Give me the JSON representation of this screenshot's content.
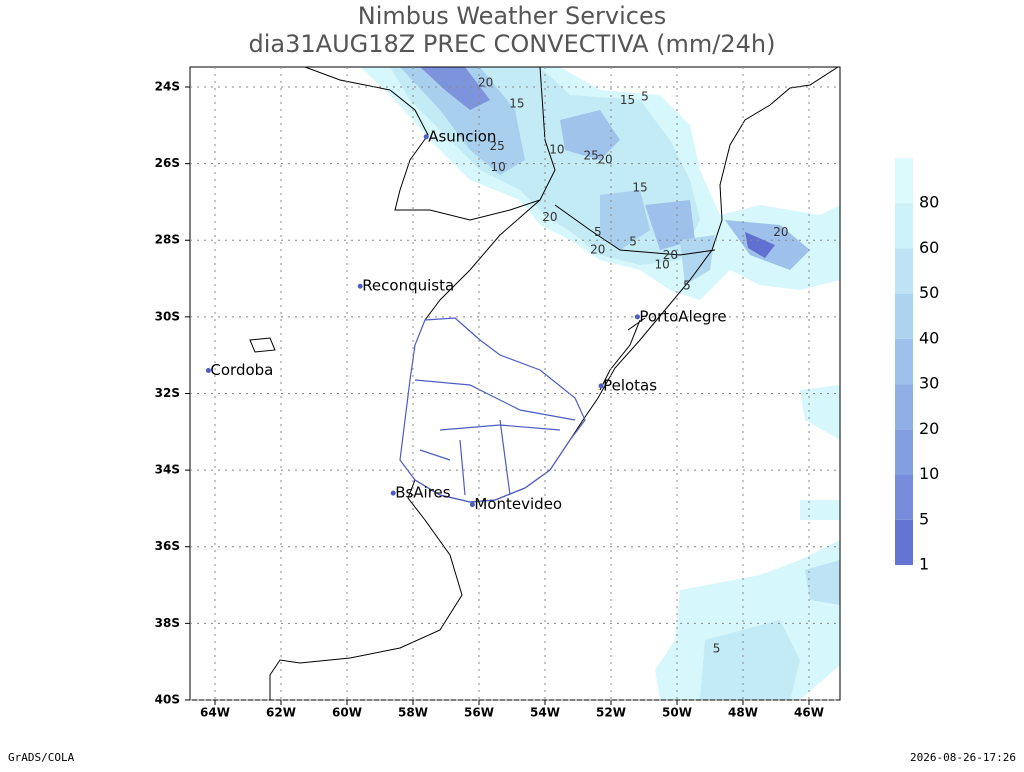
{
  "header": {
    "title": "Nimbus Weather Services",
    "subtitle": "dia31AUG18Z PREC CONVECTIVA (mm/24h)"
  },
  "map": {
    "lon_ticks": [
      {
        "value": -64,
        "label": "64W"
      },
      {
        "value": -62,
        "label": "62W"
      },
      {
        "value": -60,
        "label": "60W"
      },
      {
        "value": -58,
        "label": "58W"
      },
      {
        "value": -56,
        "label": "56W"
      },
      {
        "value": -54,
        "label": "54W"
      },
      {
        "value": -52,
        "label": "52W"
      },
      {
        "value": -50,
        "label": "50W"
      },
      {
        "value": -48,
        "label": "48W"
      },
      {
        "value": -46,
        "label": "46W"
      }
    ],
    "lat_ticks": [
      {
        "value": -24,
        "label": "24S"
      },
      {
        "value": -26,
        "label": "26S"
      },
      {
        "value": -28,
        "label": "28S"
      },
      {
        "value": -30,
        "label": "30S"
      },
      {
        "value": -32,
        "label": "32S"
      },
      {
        "value": -34,
        "label": "34S"
      },
      {
        "value": -36,
        "label": "36S"
      },
      {
        "value": -38,
        "label": "38S"
      },
      {
        "value": -40,
        "label": "40S"
      }
    ],
    "cities": [
      {
        "name": "Asuncion",
        "lon": -57.6,
        "lat": -25.3
      },
      {
        "name": "Reconquista",
        "lon": -59.6,
        "lat": -29.2
      },
      {
        "name": "Cordoba",
        "lon": -64.2,
        "lat": -31.4
      },
      {
        "name": "BsAires",
        "lon": -58.6,
        "lat": -34.6
      },
      {
        "name": "Montevideo",
        "lon": -56.2,
        "lat": -34.9
      },
      {
        "name": "PortoAlegre",
        "lon": -51.2,
        "lat": -30.0
      },
      {
        "name": "Pelotas",
        "lon": -52.3,
        "lat": -31.8
      }
    ],
    "contour_labels": [
      {
        "text": "20",
        "lon": -55.8,
        "lat": -23.9
      },
      {
        "text": "15",
        "lon": -54.85,
        "lat": -24.45
      },
      {
        "text": "15",
        "lon": -51.5,
        "lat": -24.35
      },
      {
        "text": "5",
        "lon": -50.97,
        "lat": -24.26
      },
      {
        "text": "25",
        "lon": -55.45,
        "lat": -25.55
      },
      {
        "text": "10",
        "lon": -55.42,
        "lat": -26.1
      },
      {
        "text": "10",
        "lon": -53.64,
        "lat": -25.65
      },
      {
        "text": "25",
        "lon": -52.6,
        "lat": -25.8
      },
      {
        "text": "20",
        "lon": -52.18,
        "lat": -25.9
      },
      {
        "text": "15",
        "lon": -51.12,
        "lat": -26.64
      },
      {
        "text": "20",
        "lon": -53.85,
        "lat": -27.4
      },
      {
        "text": "5",
        "lon": -52.4,
        "lat": -27.8
      },
      {
        "text": "5",
        "lon": -51.33,
        "lat": -28.05
      },
      {
        "text": "20",
        "lon": -52.4,
        "lat": -28.25
      },
      {
        "text": "20",
        "lon": -50.2,
        "lat": -28.4
      },
      {
        "text": "10",
        "lon": -50.45,
        "lat": -28.65
      },
      {
        "text": "5",
        "lon": -49.7,
        "lat": -29.2
      },
      {
        "text": "20",
        "lon": -46.85,
        "lat": -27.8
      },
      {
        "text": "5",
        "lon": -48.8,
        "lat": -38.67
      }
    ]
  },
  "colorbar": {
    "levels": [
      1,
      5,
      10,
      20,
      30,
      40,
      50,
      60,
      80
    ],
    "colors": [
      "#dcf9fc",
      "#cdf1f8",
      "#bde3f4",
      "#acd3ef",
      "#9dc1ea",
      "#90b0e5",
      "#849fe0",
      "#778cda",
      "#6374d3"
    ]
  },
  "footer": {
    "left": "GrADS/COLA",
    "right": "2026-08-26-17:26"
  }
}
